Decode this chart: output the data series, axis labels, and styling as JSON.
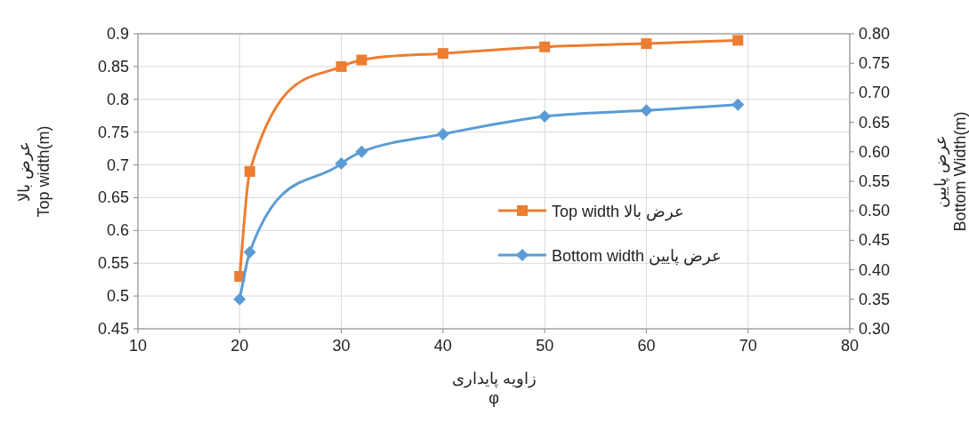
{
  "chart_data": {
    "type": "line",
    "xlabel": "زاویه پایداری\nφ",
    "ylabel": "عرض بالا\nTop  width(m)",
    "y2label": "عرض پایین\nBottom Width(m)",
    "xlim": [
      10,
      80
    ],
    "xticks": [
      10,
      20,
      30,
      40,
      50,
      60,
      70,
      80
    ],
    "ylim": [
      0.45,
      0.9
    ],
    "yticks": [
      0.45,
      0.5,
      0.55,
      0.6,
      0.65,
      0.7,
      0.75,
      0.8,
      0.85,
      0.9
    ],
    "y2lim": [
      0.3,
      0.8
    ],
    "y2ticks": [
      {
        "value": 0.3,
        "label": "0.30"
      },
      {
        "value": 0.35,
        "label": "0.35"
      },
      {
        "value": 0.4,
        "label": "0.40"
      },
      {
        "value": 0.45,
        "label": "0.45"
      },
      {
        "value": 0.5,
        "label": "0.50"
      },
      {
        "value": 0.55,
        "label": "0.55"
      },
      {
        "value": 0.6,
        "label": "0.60"
      },
      {
        "value": 0.65,
        "label": "0.65"
      },
      {
        "value": 0.7,
        "label": "0.70"
      },
      {
        "value": 0.75,
        "label": "0.75"
      },
      {
        "value": 0.8,
        "label": "0.80"
      }
    ],
    "grid": true,
    "legend": "right",
    "series": [
      {
        "name": "Top width عرض بالا",
        "color": "#ed7d31",
        "marker": "square",
        "x": [
          20,
          21,
          30,
          32,
          40,
          50,
          60,
          69
        ],
        "values": [
          0.53,
          0.69,
          0.85,
          0.86,
          0.87,
          0.88,
          0.885,
          0.89
        ]
      },
      {
        "name": "Bottom width عرض پایین",
        "color": "#5b9bd5",
        "marker": "diamond",
        "axis": "y2",
        "x": [
          20,
          21,
          30,
          32,
          40,
          50,
          60,
          69
        ],
        "values": [
          0.35,
          0.43,
          0.58,
          0.6,
          0.63,
          0.66,
          0.67,
          0.68
        ]
      }
    ]
  }
}
